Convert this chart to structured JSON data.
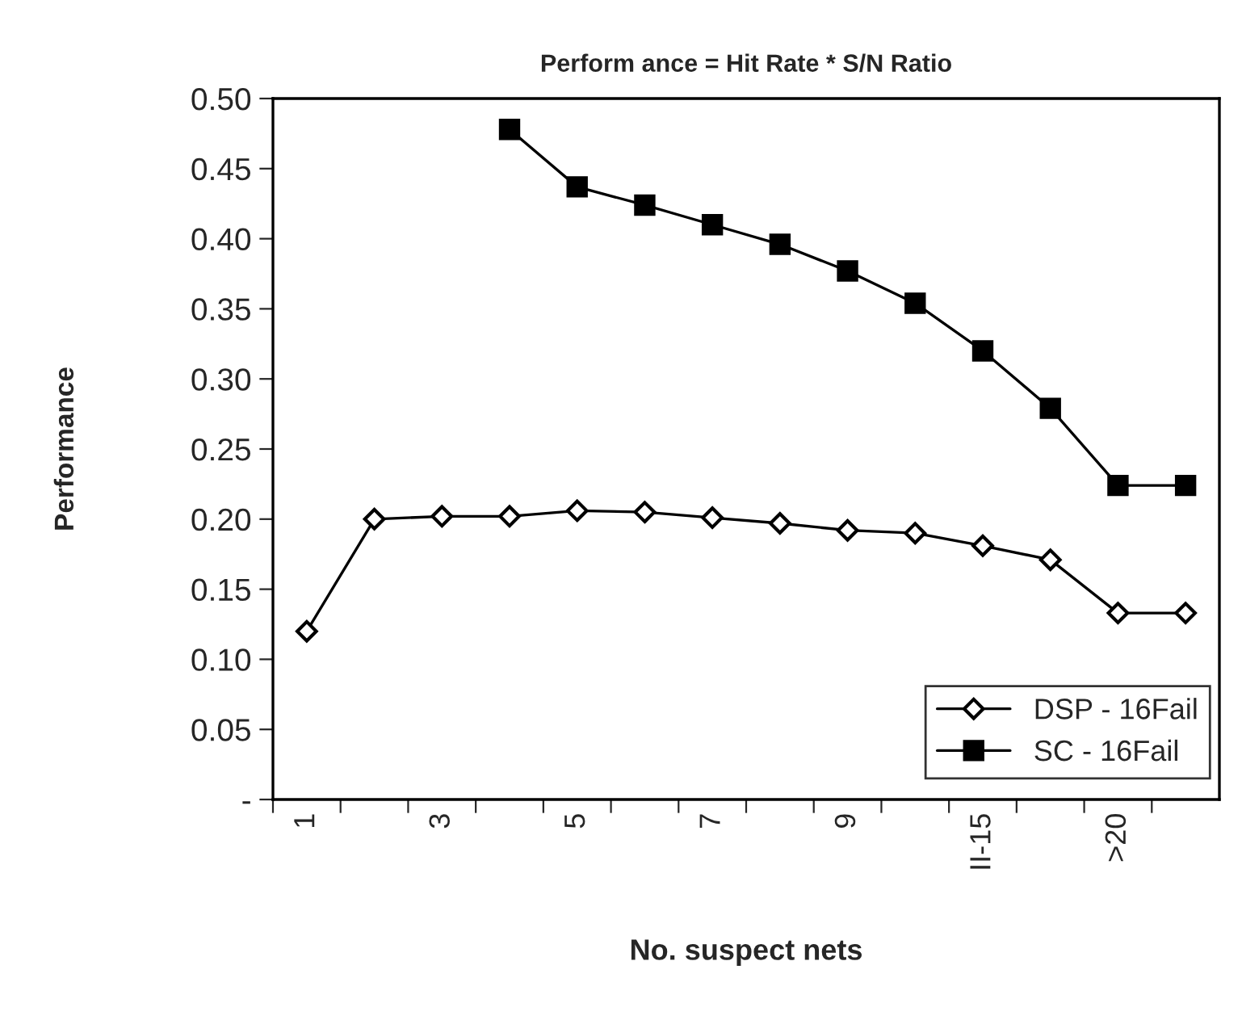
{
  "chart_data": {
    "type": "line",
    "title": "Perform ance = Hit Rate * S/N Ratio",
    "xlabel": "No. suspect nets",
    "ylabel": "Performance",
    "categories": [
      "1",
      null,
      "3",
      null,
      "5",
      null,
      "7",
      null,
      "9",
      null,
      "II-15",
      null,
      ">20",
      null
    ],
    "series": [
      {
        "name": "DSP - 16Fail",
        "color": "#000000",
        "marker": "diamond",
        "values": [
          0.12,
          0.2,
          0.202,
          0.202,
          0.206,
          0.205,
          0.201,
          0.197,
          0.192,
          0.19,
          0.181,
          0.171,
          0.133,
          0.133
        ]
      },
      {
        "name": "SC - 16Fail",
        "color": "#000000",
        "marker": "square",
        "values": [
          null,
          null,
          null,
          0.478,
          0.437,
          0.424,
          0.41,
          0.396,
          0.377,
          0.354,
          0.32,
          0.279,
          0.224,
          0.224
        ]
      }
    ],
    "ylim": [
      0,
      0.5
    ],
    "yticks": [
      {
        "value": 0,
        "label": "-"
      },
      {
        "value": 0.05,
        "label": "0.05"
      },
      {
        "value": 0.1,
        "label": "0.10"
      },
      {
        "value": 0.15,
        "label": "0.15"
      },
      {
        "value": 0.2,
        "label": "0.20"
      },
      {
        "value": 0.25,
        "label": "0.25"
      },
      {
        "value": 0.3,
        "label": "0.30"
      },
      {
        "value": 0.35,
        "label": "0.35"
      },
      {
        "value": 0.4,
        "label": "0.40"
      },
      {
        "value": 0.45,
        "label": "0.45"
      },
      {
        "value": 0.5,
        "label": "0.50"
      }
    ],
    "legend": "bottom right",
    "grid": false
  }
}
